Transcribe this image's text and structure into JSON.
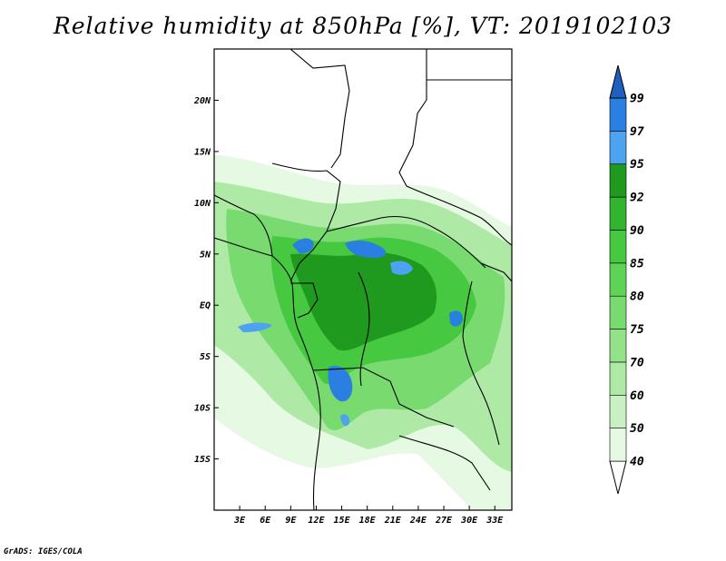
{
  "title": "Relative humidity at 850hPa [%], VT: 2019102103",
  "credit": "GrADS: IGES/COLA",
  "map": {
    "lon_range": [
      0,
      35
    ],
    "lat_range": [
      -20,
      25
    ],
    "lat_ticks": [
      {
        "value": 20,
        "label": "20N"
      },
      {
        "value": 15,
        "label": "15N"
      },
      {
        "value": 10,
        "label": "10N"
      },
      {
        "value": 5,
        "label": "5N"
      },
      {
        "value": 0,
        "label": "EQ"
      },
      {
        "value": -5,
        "label": "5S"
      },
      {
        "value": -10,
        "label": "10S"
      },
      {
        "value": -15,
        "label": "15S"
      }
    ],
    "lon_ticks": [
      {
        "value": 3,
        "label": "3E"
      },
      {
        "value": 6,
        "label": "6E"
      },
      {
        "value": 9,
        "label": "9E"
      },
      {
        "value": 12,
        "label": "12E"
      },
      {
        "value": 15,
        "label": "15E"
      },
      {
        "value": 18,
        "label": "18E"
      },
      {
        "value": 21,
        "label": "21E"
      },
      {
        "value": 24,
        "label": "24E"
      },
      {
        "value": 27,
        "label": "27E"
      },
      {
        "value": 30,
        "label": "30E"
      },
      {
        "value": 33,
        "label": "33E"
      }
    ]
  },
  "colorbar": {
    "levels": [
      "40",
      "50",
      "60",
      "70",
      "75",
      "80",
      "85",
      "90",
      "92",
      "95",
      "97",
      "99"
    ],
    "colors": [
      "#e6f9e3",
      "#c8f0c2",
      "#aee9a6",
      "#93e28a",
      "#79db6f",
      "#5fd356",
      "#46c940",
      "#32b42e",
      "#1f9a1f",
      "#4da3f0",
      "#2b7fe0",
      "#1f5fc0"
    ]
  },
  "fields": {
    "land_base": "#ffffff",
    "ocean": "#ffffff",
    "border_color": "#000000"
  }
}
